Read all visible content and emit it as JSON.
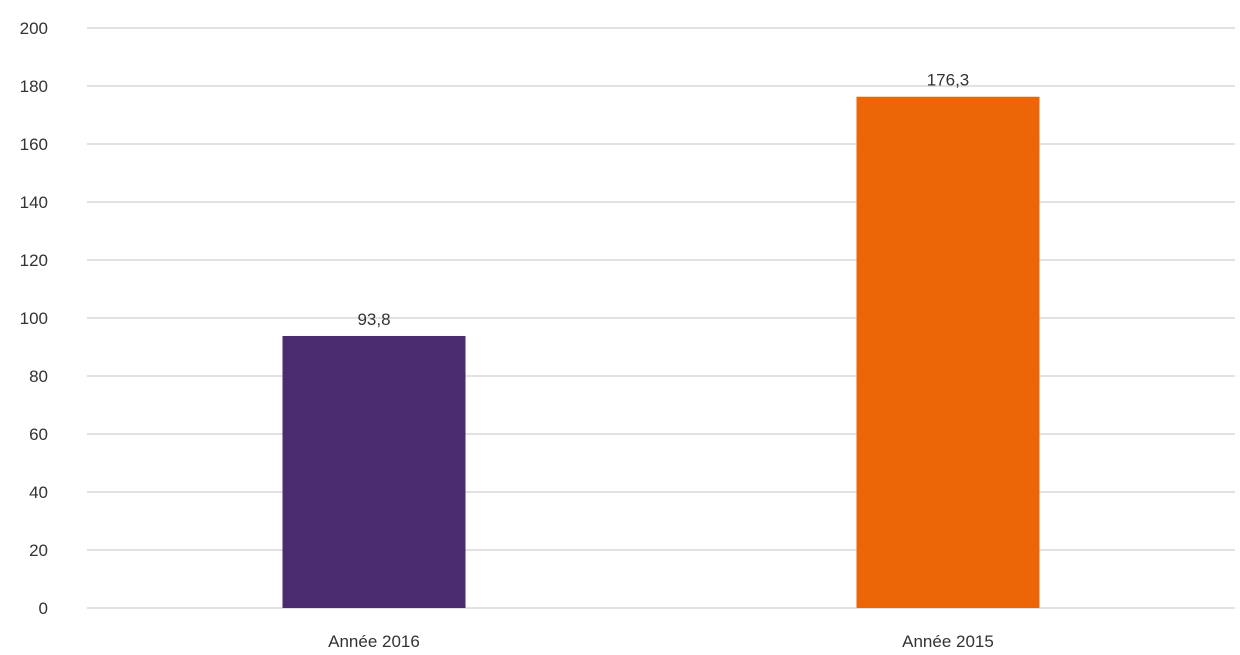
{
  "chart_data": {
    "type": "bar",
    "categories": [
      "Année 2016",
      "Année 2015"
    ],
    "values": [
      93.8,
      176.3
    ],
    "data_labels": [
      "93,8",
      "176,3"
    ],
    "colors": [
      "#4b2c71",
      "#ec6608"
    ],
    "ylim": [
      0,
      200
    ],
    "yticks": [
      0,
      20,
      40,
      60,
      80,
      100,
      120,
      140,
      160,
      180,
      200
    ],
    "grid": true,
    "legend": "none",
    "title": "",
    "xlabel": "",
    "ylabel": ""
  }
}
